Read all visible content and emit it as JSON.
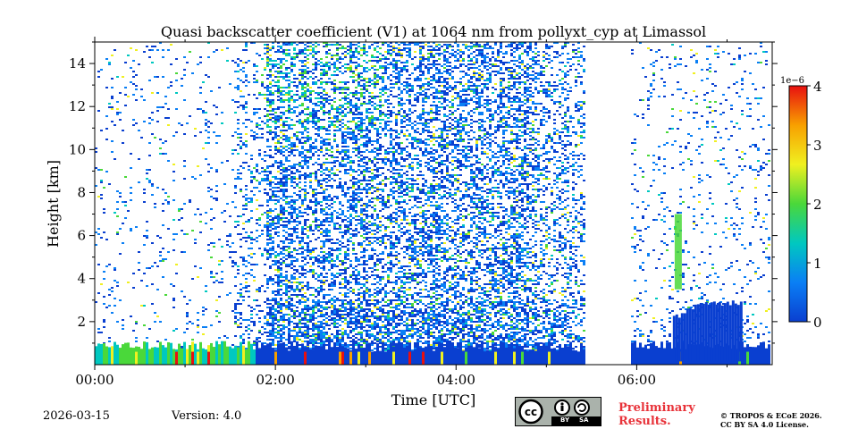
{
  "chart_data": {
    "type": "heatmap",
    "title": "Quasi backscatter coefficient (V1) at 1064 nm from pollyxt_cyp at Limassol",
    "xlabel": "Time [UTC]",
    "ylabel": "Height [km]",
    "x_range_hours": [
      0,
      7.5
    ],
    "y_range_km": [
      0,
      15
    ],
    "x_ticks": [
      {
        "hour": 0,
        "label": "00:00"
      },
      {
        "hour": 2,
        "label": "02:00"
      },
      {
        "hour": 4,
        "label": "04:00"
      },
      {
        "hour": 6,
        "label": "06:00"
      }
    ],
    "x_minor_ticks": [
      1,
      3,
      5,
      7
    ],
    "y_ticks": [
      {
        "km": 2,
        "label": "2"
      },
      {
        "km": 4,
        "label": "4"
      },
      {
        "km": 6,
        "label": "6"
      },
      {
        "km": 8,
        "label": "8"
      },
      {
        "km": 10,
        "label": "10"
      },
      {
        "km": 12,
        "label": "12"
      },
      {
        "km": 14,
        "label": "14"
      }
    ],
    "colorbar": {
      "scale_label": "1e−6",
      "range": [
        0,
        4
      ],
      "ticks": [
        {
          "value": 0,
          "label": "0"
        },
        {
          "value": 1,
          "label": "1"
        },
        {
          "value": 2,
          "label": "2"
        },
        {
          "value": 3,
          "label": "3"
        },
        {
          "value": 4,
          "label": "4"
        }
      ],
      "colors": [
        "#0a3fd0",
        "#0a7ff5",
        "#00c8c0",
        "#4ad83a",
        "#f0f020",
        "#f8a000",
        "#e81010"
      ]
    },
    "features": {
      "data_gap_hours": [
        [
          5.45,
          5.95
        ]
      ],
      "near_surface_layer_km": [
        0,
        1
      ],
      "aerosol_plume": {
        "start_hour": 6.4,
        "end_hour": 7.15,
        "top_km": 3.0
      },
      "elevated_layer": {
        "hour": 6.45,
        "bottom_km": 3.5,
        "top_km": 7.0
      }
    }
  },
  "footer": {
    "date": "2026-03-15",
    "version": "Version: 4.0",
    "license_badge": {
      "by": "BY",
      "sa": "SA"
    },
    "preliminary_line1": "Preliminary",
    "preliminary_line2": "Results.",
    "copyright_line1": "© TROPOS & ECoE 2026.",
    "copyright_line2": "CC BY SA 4.0 License."
  }
}
